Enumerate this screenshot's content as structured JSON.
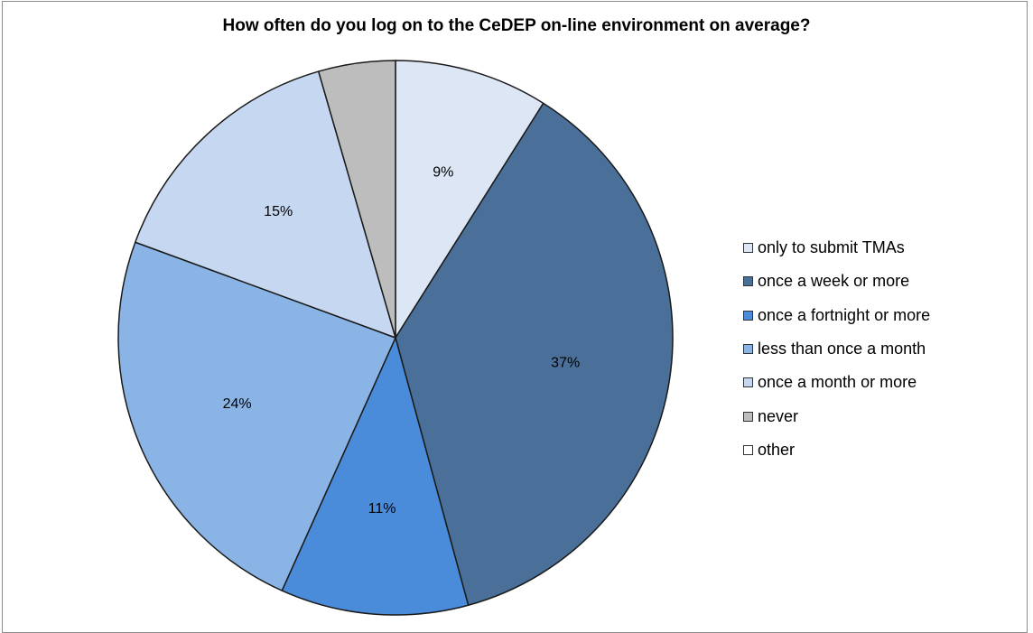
{
  "chart_data": {
    "type": "pie",
    "title": "How often do you log on to the CeDEP on-line environment on average?",
    "legend_position": "right",
    "slices": [
      {
        "label": "only to submit TMAs",
        "value": 9,
        "value_label": "9%",
        "color": "#dce6f5"
      },
      {
        "label": "once a week or more",
        "value": 37,
        "value_label": "37%",
        "color": "#4a7099"
      },
      {
        "label": "once a fortnight or more",
        "value": 11,
        "value_label": "11%",
        "color": "#4a8cd9"
      },
      {
        "label": "less than once a month",
        "value": 24,
        "value_label": "24%",
        "color": "#8ab4e6"
      },
      {
        "label": "once a month or more",
        "value": 15,
        "value_label": "15%",
        "color": "#c6d8f1"
      },
      {
        "label": "never",
        "value": 4.5,
        "value_label": "",
        "color": "#bdbdbd"
      },
      {
        "label": "other",
        "value": 0,
        "value_label": "",
        "color": "#ffffff"
      }
    ]
  }
}
